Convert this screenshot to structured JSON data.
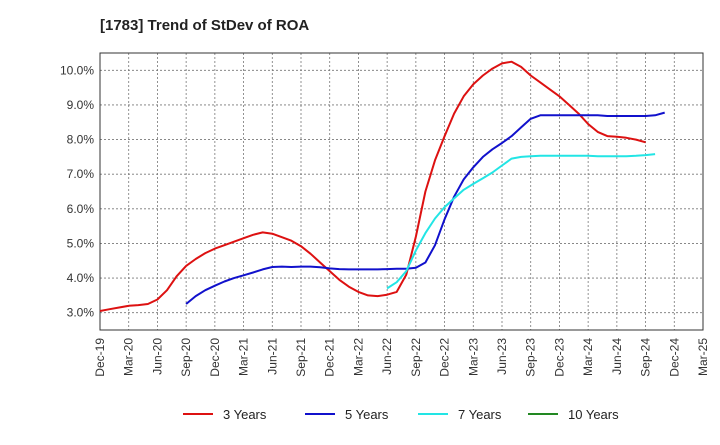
{
  "chart_data": {
    "type": "line",
    "title": "[1783]  Trend of StDev of ROA",
    "xlabel": "",
    "ylabel": "",
    "x_ticks": [
      "Dec-19",
      "Mar-20",
      "Jun-20",
      "Sep-20",
      "Dec-20",
      "Mar-21",
      "Jun-21",
      "Sep-21",
      "Dec-21",
      "Mar-22",
      "Jun-22",
      "Sep-22",
      "Dec-22",
      "Mar-23",
      "Jun-23",
      "Sep-23",
      "Dec-23",
      "Mar-24",
      "Jun-24",
      "Sep-24",
      "Dec-24",
      "Mar-25"
    ],
    "y_ticks": [
      "3.0%",
      "4.0%",
      "5.0%",
      "6.0%",
      "7.0%",
      "8.0%",
      "9.0%",
      "10.0%"
    ],
    "ylim": [
      2.5,
      10.5
    ],
    "grid": true,
    "legend_position": "bottom",
    "series": [
      {
        "name": "3 Years",
        "color": "#dd1111",
        "start_index": 0,
        "values": [
          3.05,
          3.1,
          3.15,
          3.2,
          3.22,
          3.25,
          3.38,
          3.65,
          4.05,
          4.35,
          4.55,
          4.72,
          4.85,
          4.95,
          5.05,
          5.15,
          5.25,
          5.32,
          5.28,
          5.18,
          5.08,
          4.92,
          4.7,
          4.45,
          4.2,
          3.95,
          3.75,
          3.6,
          3.5,
          3.48,
          3.52,
          3.6,
          4.1,
          5.2,
          6.5,
          7.4,
          8.1,
          8.75,
          9.25,
          9.6,
          9.85,
          10.05,
          10.2,
          10.25,
          10.1,
          9.85,
          9.65,
          9.45,
          9.25,
          9.0,
          8.75,
          8.45,
          8.22,
          8.1,
          8.08,
          8.05,
          8.0,
          7.92
        ]
      },
      {
        "name": "5 Years",
        "color": "#1111cc",
        "start_index": 9,
        "values": [
          3.25,
          3.48,
          3.65,
          3.78,
          3.9,
          4.0,
          4.08,
          4.16,
          4.25,
          4.32,
          4.33,
          4.32,
          4.33,
          4.33,
          4.31,
          4.28,
          4.26,
          4.25,
          4.25,
          4.25,
          4.25,
          4.26,
          4.27,
          4.27,
          4.3,
          4.45,
          4.95,
          5.7,
          6.35,
          6.85,
          7.2,
          7.5,
          7.72,
          7.9,
          8.1,
          8.35,
          8.6,
          8.7,
          8.7,
          8.7,
          8.7,
          8.7,
          8.7,
          8.7,
          8.68,
          8.68,
          8.68,
          8.68,
          8.68,
          8.7,
          8.78
        ]
      },
      {
        "name": "7 Years",
        "color": "#22e5e5",
        "start_index": 30,
        "values": [
          3.7,
          3.88,
          4.2,
          4.8,
          5.3,
          5.72,
          6.05,
          6.3,
          6.55,
          6.72,
          6.88,
          7.05,
          7.25,
          7.45,
          7.5,
          7.52,
          7.53,
          7.53,
          7.53,
          7.53,
          7.53,
          7.53,
          7.52,
          7.52,
          7.52,
          7.52,
          7.53,
          7.55,
          7.58
        ]
      },
      {
        "name": "10 Years",
        "color": "#228822",
        "start_index": 0,
        "values": []
      }
    ]
  }
}
